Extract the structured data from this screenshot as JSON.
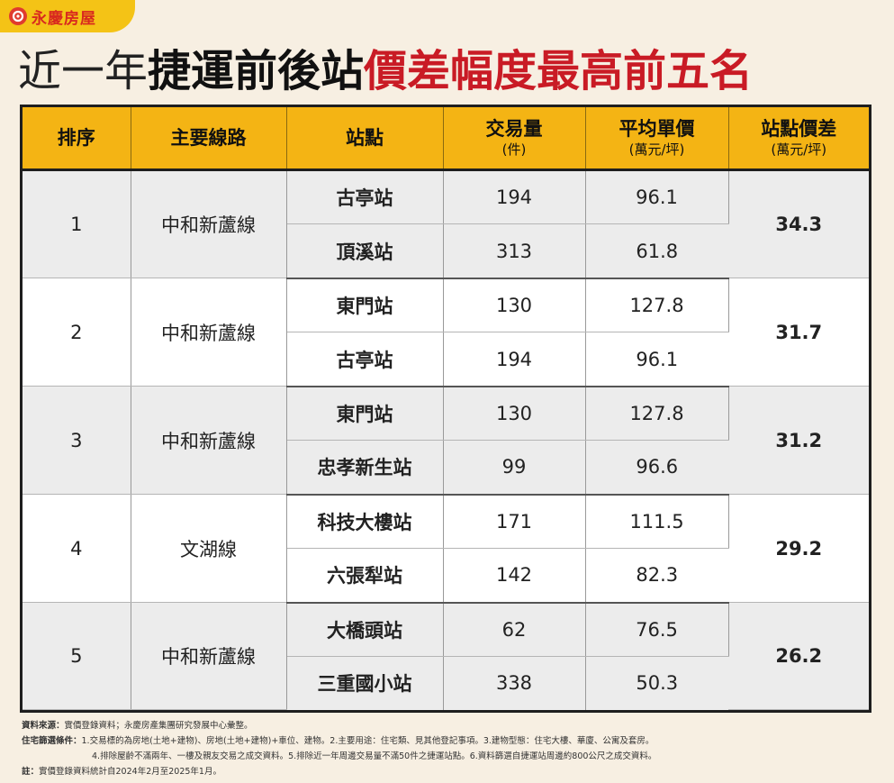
{
  "brand": {
    "name": "永慶房屋"
  },
  "title": {
    "part1": "近一年",
    "part2": "捷運前後站",
    "part3": "價差幅度最高前五名"
  },
  "table": {
    "headers": [
      {
        "main": "排序",
        "sub": ""
      },
      {
        "main": "主要線路",
        "sub": ""
      },
      {
        "main": "站點",
        "sub": ""
      },
      {
        "main": "交易量",
        "sub": "(件)"
      },
      {
        "main": "平均單價",
        "sub": "(萬元/坪)"
      },
      {
        "main": "站點價差",
        "sub": "(萬元/坪)"
      }
    ],
    "groups": [
      {
        "rank": "1",
        "line": "中和新蘆線",
        "diff": "34.3",
        "stations": [
          {
            "name": "古亭站",
            "volume": "194",
            "price": "96.1"
          },
          {
            "name": "頂溪站",
            "volume": "313",
            "price": "61.8"
          }
        ]
      },
      {
        "rank": "2",
        "line": "中和新蘆線",
        "diff": "31.7",
        "stations": [
          {
            "name": "東門站",
            "volume": "130",
            "price": "127.8"
          },
          {
            "name": "古亭站",
            "volume": "194",
            "price": "96.1"
          }
        ]
      },
      {
        "rank": "3",
        "line": "中和新蘆線",
        "diff": "31.2",
        "stations": [
          {
            "name": "東門站",
            "volume": "130",
            "price": "127.8"
          },
          {
            "name": "忠孝新生站",
            "volume": "99",
            "price": "96.6"
          }
        ]
      },
      {
        "rank": "4",
        "line": "文湖線",
        "diff": "29.2",
        "stations": [
          {
            "name": "科技大樓站",
            "volume": "171",
            "price": "111.5"
          },
          {
            "name": "六張犁站",
            "volume": "142",
            "price": "82.3"
          }
        ]
      },
      {
        "rank": "5",
        "line": "中和新蘆線",
        "diff": "26.2",
        "stations": [
          {
            "name": "大橋頭站",
            "volume": "62",
            "price": "76.5"
          },
          {
            "name": "三重國小站",
            "volume": "338",
            "price": "50.3"
          }
        ]
      }
    ]
  },
  "notes": {
    "source_label": "資料來源：",
    "source_text": "實價登錄資料；永慶房產集團研究發展中心彙整。",
    "criteria_label": "住宅篩選條件：",
    "criteria_line1": "1.交易標的為房地(土地+建物)、房地(土地+建物)+車位、建物。2.主要用途：住宅類、見其他登記事項。3.建物型態：住宅大樓、華廈、公寓及套房。",
    "criteria_line2": "4.排除屋齡不滿兩年、一樓及親友交易之成交資料。5.排除近一年周邊交易量不滿50件之捷運站點。6.資料篩選自捷運站周邊約800公尺之成交資料。",
    "note_label": "註：",
    "note_text": "實價登錄資料統計自2024年2月至2025年1月。"
  }
}
